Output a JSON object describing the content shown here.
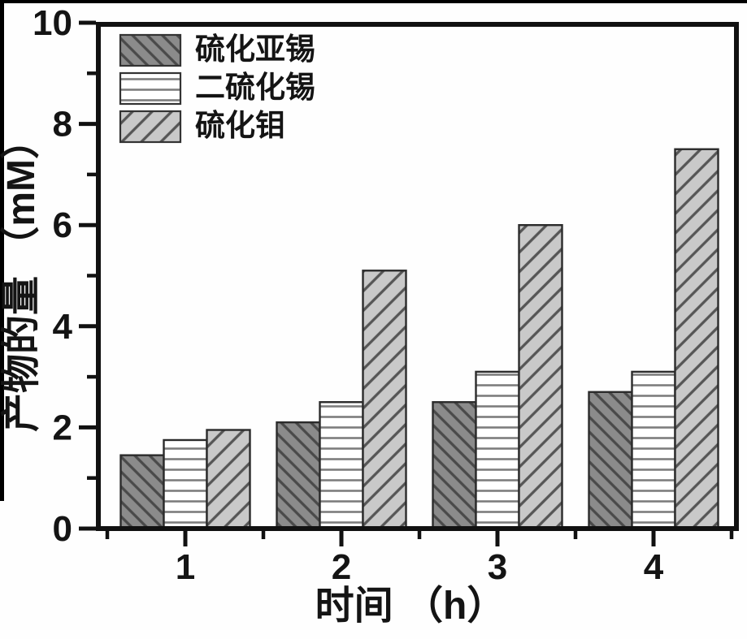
{
  "figure": {
    "background_color": "#fefefe",
    "scan_border_color": "#000000",
    "axis_color": "#111111",
    "text_color": "#141414",
    "bar_edge_color": "#2b2b2b"
  },
  "chart_data": {
    "type": "bar",
    "title": "",
    "xlabel": "时间 （h）",
    "ylabel": "产物的量 （mM）",
    "categories": [
      "1",
      "2",
      "3",
      "4"
    ],
    "series": [
      {
        "name": "硫化亚锡",
        "values": [
          1.45,
          2.1,
          2.5,
          2.7
        ],
        "fill": "#8b8b8b",
        "hatch": "/",
        "hatch_color": "#4a4a4a",
        "hatch_spacing": 13
      },
      {
        "name": "二硫化锡",
        "values": [
          1.75,
          2.5,
          3.1,
          3.1
        ],
        "fill": "#ffffff",
        "hatch": "-",
        "hatch_color": "#7d7d7d",
        "hatch_spacing": 13
      },
      {
        "name": "硫化钼",
        "values": [
          1.95,
          5.1,
          6.0,
          7.5
        ],
        "fill": "#c9c9c9",
        "hatch": "\\",
        "hatch_color": "#565656",
        "hatch_spacing": 17
      }
    ],
    "ylim": [
      0,
      10
    ],
    "yticks_major": [
      0,
      2,
      4,
      6,
      8,
      10
    ],
    "yticks_minor": [
      1,
      3,
      5,
      7,
      9
    ],
    "xticks_major": [
      1,
      2,
      3,
      4
    ],
    "xticks_minor": [
      0.5,
      1.5,
      2.5,
      3.5,
      4.5
    ],
    "grid": false,
    "legend_position": "upper-left",
    "frame": "full-box"
  }
}
